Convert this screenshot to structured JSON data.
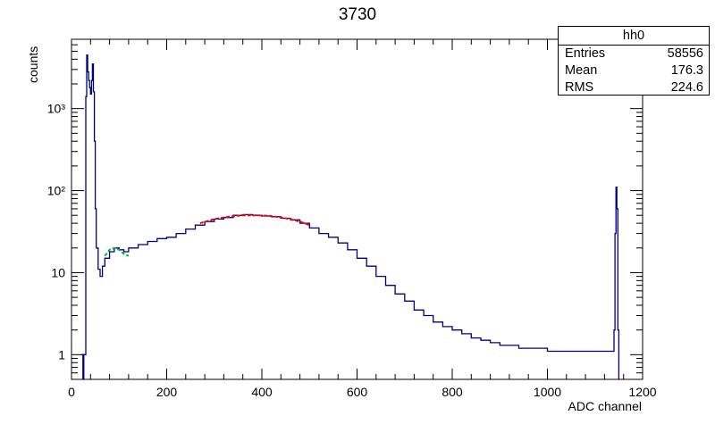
{
  "chart_data": {
    "type": "histogram",
    "title": "3730",
    "xlabel": "ADC channel",
    "ylabel": "counts",
    "xlim": [
      0,
      1200
    ],
    "ylim": [
      0.5,
      7000
    ],
    "yscale": "log",
    "x_ticks": [
      "0",
      "200",
      "400",
      "600",
      "800",
      "1000",
      "1200"
    ],
    "y_ticks": [
      {
        "value": 1,
        "label": "1"
      },
      {
        "value": 10,
        "label": "10"
      },
      {
        "value": 100,
        "label": "10²"
      },
      {
        "value": 1000,
        "label": "10³"
      }
    ],
    "series": [
      {
        "line_color": "#000080",
        "points": [
          [
            20,
            1
          ],
          [
            22,
            1
          ],
          [
            24,
            0.5
          ],
          [
            26,
            1
          ],
          [
            28,
            1
          ],
          [
            30,
            1400
          ],
          [
            32,
            4500
          ],
          [
            34,
            2800
          ],
          [
            36,
            2200
          ],
          [
            38,
            1800
          ],
          [
            40,
            1500
          ],
          [
            42,
            2200
          ],
          [
            44,
            3500
          ],
          [
            46,
            1600
          ],
          [
            48,
            400
          ],
          [
            50,
            60
          ],
          [
            52,
            20
          ],
          [
            56,
            11
          ],
          [
            60,
            9
          ],
          [
            65,
            12
          ],
          [
            70,
            15
          ],
          [
            80,
            18
          ],
          [
            90,
            20
          ],
          [
            100,
            19
          ],
          [
            110,
            18
          ],
          [
            120,
            20
          ],
          [
            140,
            22
          ],
          [
            160,
            24
          ],
          [
            180,
            26
          ],
          [
            200,
            27
          ],
          [
            220,
            30
          ],
          [
            240,
            34
          ],
          [
            260,
            38
          ],
          [
            280,
            42
          ],
          [
            300,
            45
          ],
          [
            320,
            47
          ],
          [
            340,
            50
          ],
          [
            360,
            51
          ],
          [
            380,
            50
          ],
          [
            400,
            49
          ],
          [
            420,
            48
          ],
          [
            440,
            46
          ],
          [
            460,
            44
          ],
          [
            480,
            40
          ],
          [
            500,
            35
          ],
          [
            520,
            30
          ],
          [
            540,
            27
          ],
          [
            560,
            23
          ],
          [
            580,
            19
          ],
          [
            600,
            15
          ],
          [
            620,
            12
          ],
          [
            640,
            9
          ],
          [
            660,
            7
          ],
          [
            680,
            5.5
          ],
          [
            700,
            4.5
          ],
          [
            720,
            3.5
          ],
          [
            740,
            3
          ],
          [
            760,
            2.5
          ],
          [
            780,
            2.2
          ],
          [
            800,
            2
          ],
          [
            820,
            1.8
          ],
          [
            840,
            1.6
          ],
          [
            860,
            1.5
          ],
          [
            880,
            1.4
          ],
          [
            900,
            1.3
          ],
          [
            920,
            1.3
          ],
          [
            940,
            1.2
          ],
          [
            960,
            1.2
          ],
          [
            980,
            1.2
          ],
          [
            1000,
            1.1
          ],
          [
            1020,
            1.1
          ],
          [
            1040,
            1.1
          ],
          [
            1060,
            1.1
          ],
          [
            1080,
            1.1
          ],
          [
            1100,
            1.1
          ],
          [
            1120,
            1.1
          ],
          [
            1138,
            1.1
          ],
          [
            1140,
            2
          ],
          [
            1142,
            30
          ],
          [
            1144,
            110
          ],
          [
            1146,
            60
          ],
          [
            1148,
            2
          ],
          [
            1150,
            0.5
          ]
        ]
      }
    ],
    "fits": [
      {
        "color": "#00b050",
        "points": [
          [
            70,
            16
          ],
          [
            80,
            19
          ],
          [
            90,
            20
          ],
          [
            100,
            19
          ],
          [
            110,
            17
          ],
          [
            120,
            16
          ]
        ]
      },
      {
        "color": "#ff0000",
        "points": [
          [
            270,
            40
          ],
          [
            300,
            45
          ],
          [
            330,
            48
          ],
          [
            360,
            50
          ],
          [
            390,
            50
          ],
          [
            420,
            49
          ],
          [
            450,
            46
          ],
          [
            480,
            42
          ],
          [
            500,
            38
          ]
        ]
      }
    ]
  },
  "stats": {
    "name": "hh0",
    "rows": [
      {
        "label": "Entries",
        "value": "58556"
      },
      {
        "label": "Mean",
        "value": "176.3"
      },
      {
        "label": "RMS",
        "value": "224.6"
      }
    ]
  }
}
